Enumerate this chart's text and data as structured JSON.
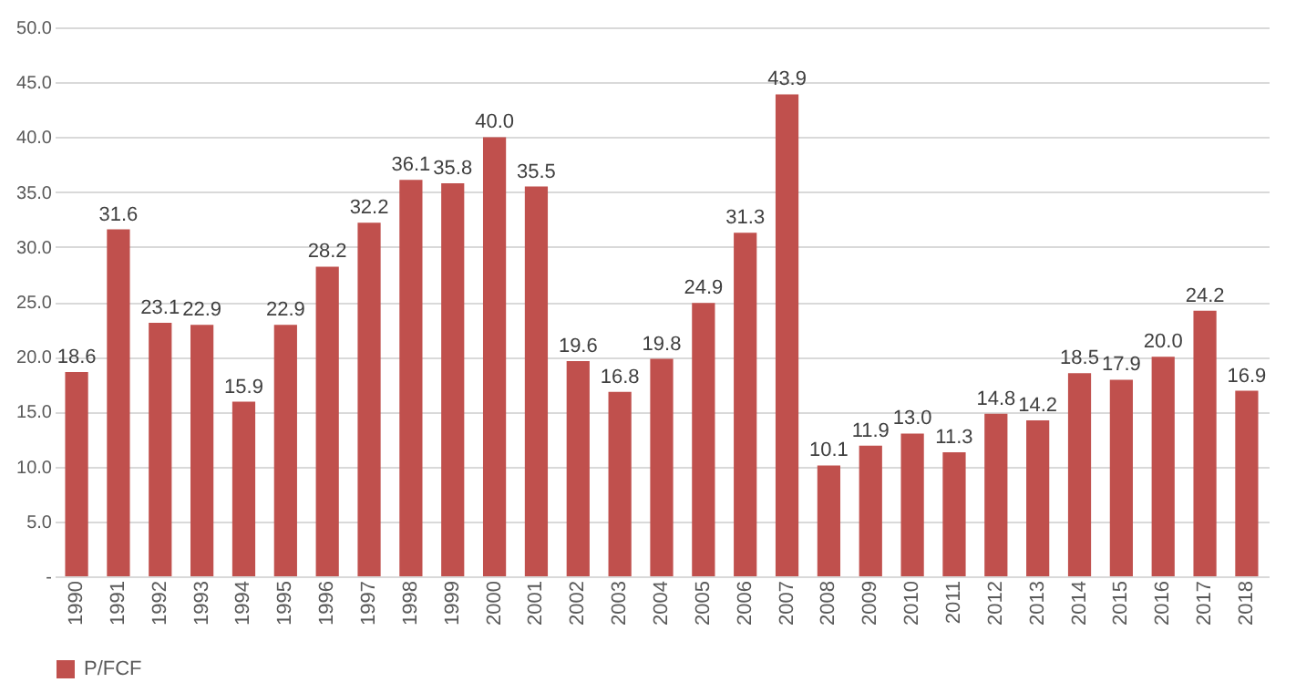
{
  "chart_data": {
    "type": "bar",
    "categories": [
      "1990",
      "1991",
      "1992",
      "1993",
      "1994",
      "1995",
      "1996",
      "1997",
      "1998",
      "1999",
      "2000",
      "2001",
      "2002",
      "2003",
      "2004",
      "2005",
      "2006",
      "2007",
      "2008",
      "2009",
      "2010",
      "2011",
      "2012",
      "2013",
      "2014",
      "2015",
      "2016",
      "2017",
      "2018"
    ],
    "series": [
      {
        "name": "P/FCF",
        "color": "#c0504d",
        "values": [
          18.6,
          31.6,
          23.1,
          22.9,
          15.9,
          22.9,
          28.2,
          32.2,
          36.1,
          35.8,
          40.0,
          35.5,
          19.6,
          16.8,
          19.8,
          24.9,
          31.3,
          43.9,
          10.1,
          11.9,
          13.0,
          11.3,
          14.8,
          14.2,
          18.5,
          17.9,
          20.0,
          24.2,
          16.9
        ],
        "value_labels": [
          "18.6",
          "31.6",
          "23.1",
          "22.9",
          "15.9",
          "22.9",
          "28.2",
          "32.2",
          "36.1",
          "35.8",
          "40.0",
          "35.5",
          "19.6",
          "16.8",
          "19.8",
          "24.9",
          "31.3",
          "43.9",
          "10.1",
          "11.9",
          "13.0",
          "11.3",
          "14.8",
          "14.2",
          "18.5",
          "17.9",
          "20.0",
          "24.2",
          "16.9"
        ]
      }
    ],
    "ylim": [
      0,
      50
    ],
    "yticks": [
      {
        "value": 0,
        "label": "-"
      },
      {
        "value": 5,
        "label": "5.0"
      },
      {
        "value": 10,
        "label": "10.0"
      },
      {
        "value": 15,
        "label": "15.0"
      },
      {
        "value": 20,
        "label": "20.0"
      },
      {
        "value": 25,
        "label": "25.0"
      },
      {
        "value": 30,
        "label": "30.0"
      },
      {
        "value": 35,
        "label": "35.0"
      },
      {
        "value": 40,
        "label": "40.0"
      },
      {
        "value": 45,
        "label": "45.0"
      },
      {
        "value": 50,
        "label": "50.0"
      }
    ],
    "grid": "y",
    "legend": "bottom"
  }
}
